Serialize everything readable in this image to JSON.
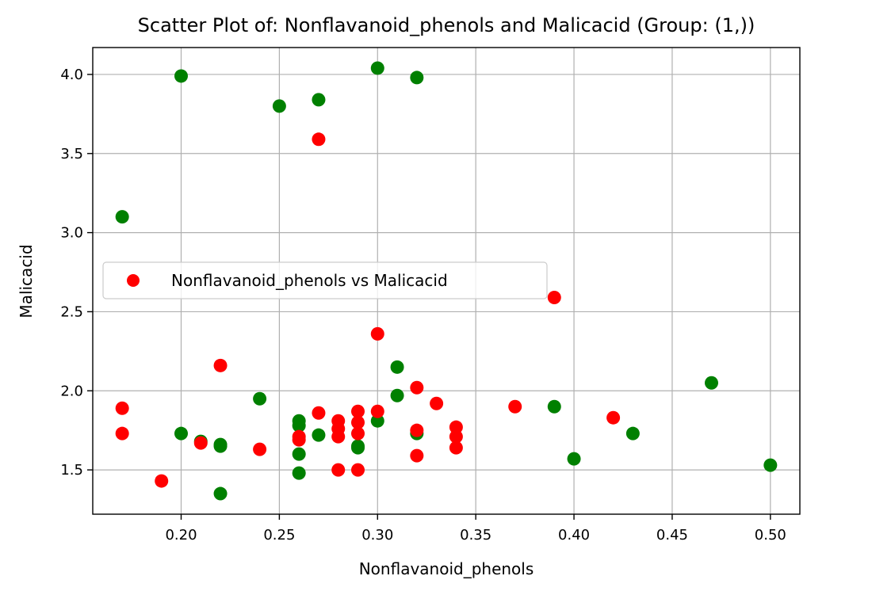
{
  "chart_data": {
    "type": "scatter",
    "title": "Scatter Plot of: Nonflavanoid_phenols and Malicacid (Group: (1,))",
    "xlabel": "Nonflavanoid_phenols",
    "ylabel": "Malicacid",
    "xlim": [
      0.155,
      0.515
    ],
    "ylim": [
      1.22,
      4.17
    ],
    "xticks": [
      "0.20",
      "0.25",
      "0.30",
      "0.35",
      "0.40",
      "0.45",
      "0.50"
    ],
    "yticks": [
      "1.5",
      "2.0",
      "2.5",
      "3.0",
      "3.5",
      "4.0"
    ],
    "grid": true,
    "legend_position": "center-left",
    "series": [
      {
        "name": "Nonflavanoid_phenols vs Malicacid",
        "color": "#ff0000",
        "points": [
          [
            0.17,
            1.89
          ],
          [
            0.17,
            1.73
          ],
          [
            0.19,
            1.43
          ],
          [
            0.21,
            1.67
          ],
          [
            0.22,
            2.16
          ],
          [
            0.24,
            1.63
          ],
          [
            0.26,
            1.71
          ],
          [
            0.26,
            1.69
          ],
          [
            0.27,
            1.86
          ],
          [
            0.27,
            3.59
          ],
          [
            0.28,
            1.81
          ],
          [
            0.28,
            1.76
          ],
          [
            0.28,
            1.71
          ],
          [
            0.28,
            1.5
          ],
          [
            0.29,
            1.87
          ],
          [
            0.29,
            1.8
          ],
          [
            0.29,
            1.73
          ],
          [
            0.29,
            1.5
          ],
          [
            0.3,
            2.36
          ],
          [
            0.3,
            1.87
          ],
          [
            0.32,
            2.02
          ],
          [
            0.32,
            1.75
          ],
          [
            0.32,
            1.59
          ],
          [
            0.33,
            1.92
          ],
          [
            0.34,
            1.77
          ],
          [
            0.34,
            1.71
          ],
          [
            0.34,
            1.64
          ],
          [
            0.37,
            1.9
          ],
          [
            0.39,
            2.59
          ],
          [
            0.42,
            1.83
          ]
        ]
      },
      {
        "color": "#008000",
        "points": [
          [
            0.17,
            3.1
          ],
          [
            0.2,
            3.99
          ],
          [
            0.2,
            1.73
          ],
          [
            0.21,
            1.68
          ],
          [
            0.22,
            1.66
          ],
          [
            0.22,
            1.65
          ],
          [
            0.22,
            1.35
          ],
          [
            0.24,
            1.95
          ],
          [
            0.25,
            3.8
          ],
          [
            0.26,
            1.81
          ],
          [
            0.26,
            1.78
          ],
          [
            0.26,
            1.6
          ],
          [
            0.26,
            1.48
          ],
          [
            0.27,
            3.84
          ],
          [
            0.27,
            1.72
          ],
          [
            0.29,
            1.65
          ],
          [
            0.29,
            1.64
          ],
          [
            0.3,
            4.04
          ],
          [
            0.3,
            1.81
          ],
          [
            0.31,
            2.15
          ],
          [
            0.31,
            1.97
          ],
          [
            0.32,
            3.98
          ],
          [
            0.32,
            1.73
          ],
          [
            0.39,
            1.9
          ],
          [
            0.4,
            1.57
          ],
          [
            0.43,
            1.73
          ],
          [
            0.47,
            2.05
          ],
          [
            0.5,
            1.53
          ]
        ]
      }
    ]
  }
}
